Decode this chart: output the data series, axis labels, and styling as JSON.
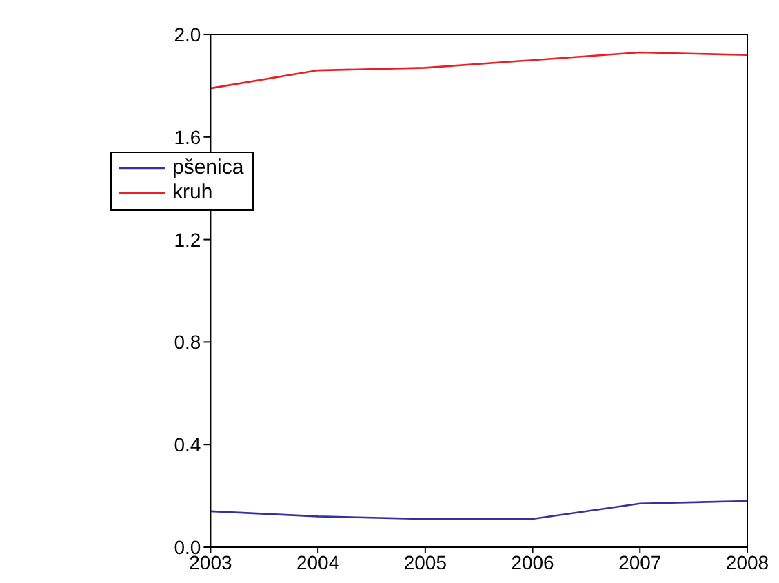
{
  "chart_data": {
    "type": "line",
    "x": [
      2003,
      2004,
      2005,
      2006,
      2007,
      2008
    ],
    "series": [
      {
        "name": "pšenica",
        "color": "#3333a0",
        "values": [
          0.14,
          0.12,
          0.11,
          0.11,
          0.17,
          0.18
        ]
      },
      {
        "name": "kruh",
        "color": "#ee1c24",
        "values": [
          1.79,
          1.86,
          1.87,
          1.9,
          1.93,
          1.92
        ]
      }
    ],
    "xlim": [
      2003,
      2008
    ],
    "xticks": [
      2003,
      2004,
      2005,
      2006,
      2007,
      2008
    ],
    "ylim": [
      0,
      2
    ],
    "yticks": [
      {
        "value": 0,
        "label": "0.0"
      },
      {
        "value": 0.4,
        "label": "0.4"
      },
      {
        "value": 0.8,
        "label": "0.8"
      },
      {
        "value": 1.2,
        "label": "1.2"
      },
      {
        "value": 1.6,
        "label": "1.6"
      },
      {
        "value": 2,
        "label": "2.0"
      }
    ],
    "grid": false,
    "legend": "top left",
    "marker": "none",
    "line_style": "solid"
  }
}
